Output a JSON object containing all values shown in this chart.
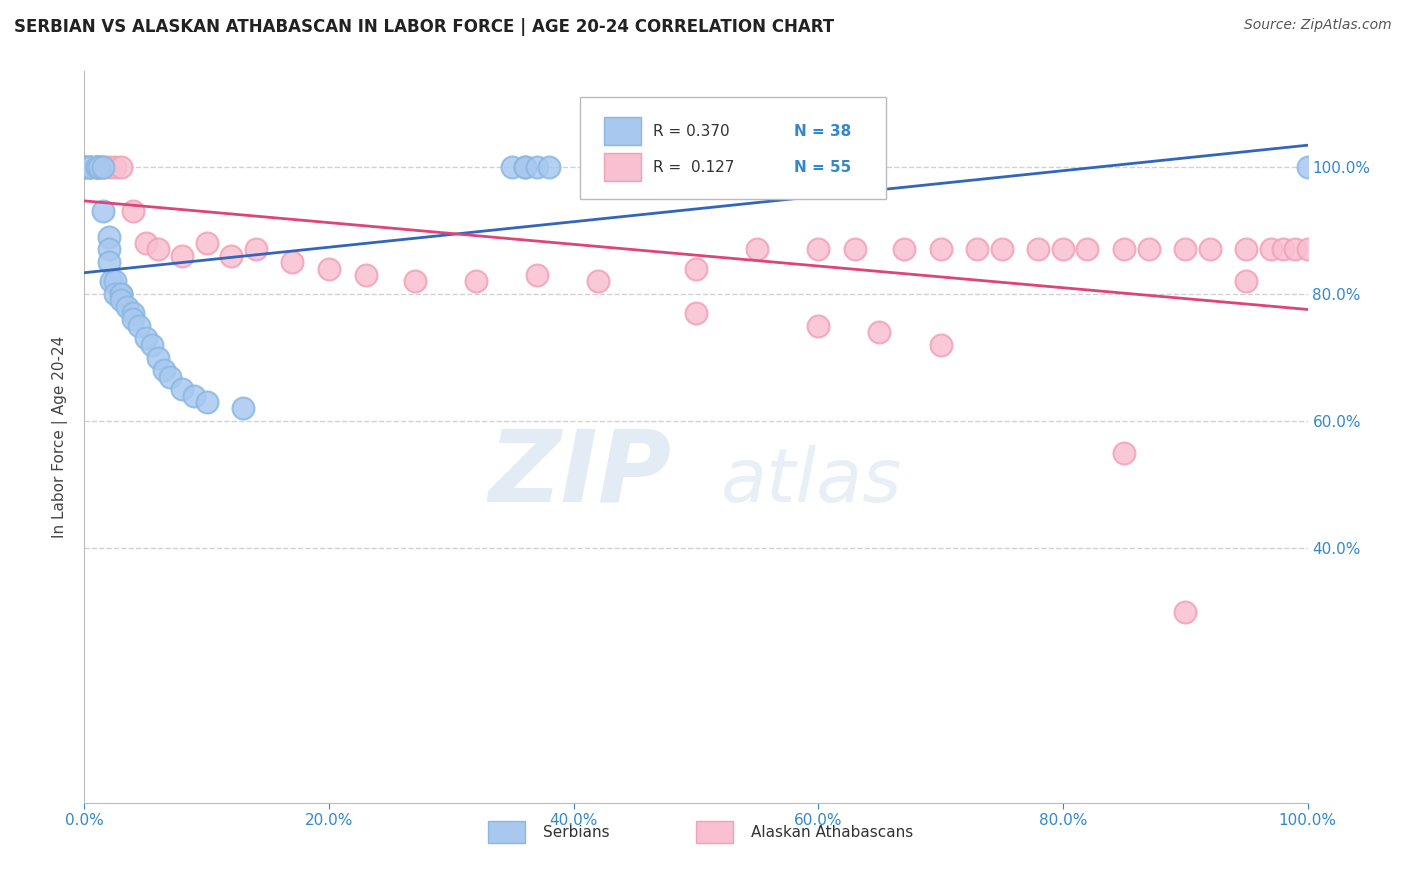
{
  "title": "SERBIAN VS ALASKAN ATHABASCAN IN LABOR FORCE | AGE 20-24 CORRELATION CHART",
  "source": "Source: ZipAtlas.com",
  "ylabel": "In Labor Force | Age 20-24",
  "watermark_zip": "ZIP",
  "watermark_atlas": "atlas",
  "legend_r_blue": "R = 0.370",
  "legend_n_blue": "N = 38",
  "legend_r_pink": "R =  0.127",
  "legend_n_pink": "N = 55",
  "blue_color": "#8BB8E0",
  "pink_color": "#F4A0B5",
  "blue_face": "#A8C8F0",
  "pink_face": "#F8C0D0",
  "blue_line_color": "#3366BB",
  "pink_line_color": "#DD4477",
  "serbian_x": [
    0.0,
    0.0,
    0.005,
    0.005,
    0.01,
    0.01,
    0.012,
    0.012,
    0.015,
    0.015,
    0.02,
    0.02,
    0.02,
    0.022,
    0.025,
    0.025,
    0.03,
    0.03,
    0.03,
    0.035,
    0.04,
    0.04,
    0.045,
    0.05,
    0.055,
    0.06,
    0.065,
    0.07,
    0.08,
    0.09,
    0.1,
    0.13,
    0.35,
    0.36,
    0.36,
    0.37,
    0.38,
    1.0
  ],
  "serbian_y": [
    1.0,
    1.0,
    1.0,
    1.0,
    1.0,
    1.0,
    1.0,
    1.0,
    1.0,
    0.93,
    0.89,
    0.87,
    0.85,
    0.82,
    0.82,
    0.8,
    0.8,
    0.8,
    0.79,
    0.78,
    0.77,
    0.76,
    0.75,
    0.73,
    0.72,
    0.7,
    0.68,
    0.67,
    0.65,
    0.64,
    0.63,
    0.62,
    1.0,
    1.0,
    1.0,
    1.0,
    1.0,
    1.0
  ],
  "athabascan_x": [
    0.0,
    0.0,
    0.0,
    0.005,
    0.005,
    0.01,
    0.01,
    0.01,
    0.01,
    0.015,
    0.015,
    0.02,
    0.025,
    0.03,
    0.04,
    0.05,
    0.06,
    0.08,
    0.1,
    0.12,
    0.14,
    0.17,
    0.2,
    0.23,
    0.27,
    0.32,
    0.37,
    0.42,
    0.5,
    0.55,
    0.6,
    0.63,
    0.67,
    0.7,
    0.73,
    0.75,
    0.78,
    0.8,
    0.82,
    0.85,
    0.87,
    0.9,
    0.92,
    0.95,
    0.97,
    0.98,
    0.99,
    1.0,
    0.5,
    0.6,
    0.65,
    0.7,
    0.85,
    0.9,
    0.95
  ],
  "athabascan_y": [
    1.0,
    1.0,
    1.0,
    1.0,
    1.0,
    1.0,
    1.0,
    1.0,
    1.0,
    1.0,
    1.0,
    1.0,
    1.0,
    1.0,
    0.93,
    0.88,
    0.87,
    0.86,
    0.88,
    0.86,
    0.87,
    0.85,
    0.84,
    0.83,
    0.82,
    0.82,
    0.83,
    0.82,
    0.84,
    0.87,
    0.87,
    0.87,
    0.87,
    0.87,
    0.87,
    0.87,
    0.87,
    0.87,
    0.87,
    0.87,
    0.87,
    0.87,
    0.87,
    0.87,
    0.87,
    0.87,
    0.87,
    0.87,
    0.77,
    0.75,
    0.74,
    0.72,
    0.55,
    0.3,
    0.82
  ],
  "xlim": [
    0.0,
    1.0
  ],
  "ylim": [
    0.0,
    1.15
  ],
  "ytick_positions": [
    0.4,
    0.6,
    0.8,
    1.0
  ],
  "ytick_labels": [
    "40.0%",
    "60.0%",
    "80.0%",
    "100.0%"
  ],
  "xtick_positions": [
    0.0,
    0.2,
    0.4,
    0.6,
    0.8,
    1.0
  ],
  "xtick_labels": [
    "0.0%",
    "20.0%",
    "40.0%",
    "60.0%",
    "80.0%",
    "100.0%"
  ]
}
